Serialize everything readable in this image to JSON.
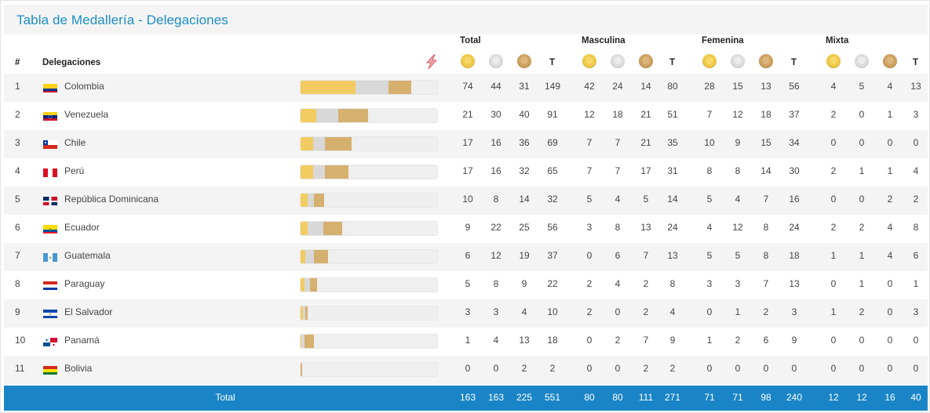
{
  "title": "Tabla de Medallería - Delegaciones",
  "header": {
    "rank": "#",
    "delegations": "Delegaciones",
    "groups": [
      "Total",
      "Masculina",
      "Femenina",
      "Mixta"
    ],
    "total_col": "T"
  },
  "rows": [
    {
      "rank": "1",
      "country": "Colombia",
      "flag": "colombia",
      "total": [
        "74",
        "44",
        "31",
        "149"
      ],
      "men": [
        "42",
        "24",
        "14",
        "80"
      ],
      "women": [
        "28",
        "15",
        "13",
        "56"
      ],
      "mixed": [
        "4",
        "5",
        "4",
        "13"
      ]
    },
    {
      "rank": "2",
      "country": "Venezuela",
      "flag": "venezuela",
      "total": [
        "21",
        "30",
        "40",
        "91"
      ],
      "men": [
        "12",
        "18",
        "21",
        "51"
      ],
      "women": [
        "7",
        "12",
        "18",
        "37"
      ],
      "mixed": [
        "2",
        "0",
        "1",
        "3"
      ]
    },
    {
      "rank": "3",
      "country": "Chile",
      "flag": "chile",
      "total": [
        "17",
        "16",
        "36",
        "69"
      ],
      "men": [
        "7",
        "7",
        "21",
        "35"
      ],
      "women": [
        "10",
        "9",
        "15",
        "34"
      ],
      "mixed": [
        "0",
        "0",
        "0",
        "0"
      ]
    },
    {
      "rank": "4",
      "country": "Perú",
      "flag": "peru",
      "total": [
        "17",
        "16",
        "32",
        "65"
      ],
      "men": [
        "7",
        "7",
        "17",
        "31"
      ],
      "women": [
        "8",
        "8",
        "14",
        "30"
      ],
      "mixed": [
        "2",
        "1",
        "1",
        "4"
      ]
    },
    {
      "rank": "5",
      "country": "República Dominicana",
      "flag": "dominicana",
      "total": [
        "10",
        "8",
        "14",
        "32"
      ],
      "men": [
        "5",
        "4",
        "5",
        "14"
      ],
      "women": [
        "5",
        "4",
        "7",
        "16"
      ],
      "mixed": [
        "0",
        "0",
        "2",
        "2"
      ]
    },
    {
      "rank": "6",
      "country": "Ecuador",
      "flag": "ecuador",
      "total": [
        "9",
        "22",
        "25",
        "56"
      ],
      "men": [
        "3",
        "8",
        "13",
        "24"
      ],
      "women": [
        "4",
        "12",
        "8",
        "24"
      ],
      "mixed": [
        "2",
        "2",
        "4",
        "8"
      ]
    },
    {
      "rank": "7",
      "country": "Guatemala",
      "flag": "guatemala",
      "total": [
        "6",
        "12",
        "19",
        "37"
      ],
      "men": [
        "0",
        "6",
        "7",
        "13"
      ],
      "women": [
        "5",
        "5",
        "8",
        "18"
      ],
      "mixed": [
        "1",
        "1",
        "4",
        "6"
      ]
    },
    {
      "rank": "8",
      "country": "Paraguay",
      "flag": "paraguay",
      "total": [
        "5",
        "8",
        "9",
        "22"
      ],
      "men": [
        "2",
        "4",
        "2",
        "8"
      ],
      "women": [
        "3",
        "3",
        "7",
        "13"
      ],
      "mixed": [
        "0",
        "1",
        "0",
        "1"
      ]
    },
    {
      "rank": "9",
      "country": "El Salvador",
      "flag": "elsalvador",
      "total": [
        "3",
        "3",
        "4",
        "10"
      ],
      "men": [
        "2",
        "0",
        "2",
        "4"
      ],
      "women": [
        "0",
        "1",
        "2",
        "3"
      ],
      "mixed": [
        "1",
        "2",
        "0",
        "3"
      ]
    },
    {
      "rank": "10",
      "country": "Panamá",
      "flag": "panama",
      "total": [
        "1",
        "4",
        "13",
        "18"
      ],
      "men": [
        "0",
        "2",
        "7",
        "9"
      ],
      "women": [
        "1",
        "2",
        "6",
        "9"
      ],
      "mixed": [
        "0",
        "0",
        "0",
        "0"
      ]
    },
    {
      "rank": "11",
      "country": "Bolivia",
      "flag": "bolivia",
      "total": [
        "0",
        "0",
        "2",
        "2"
      ],
      "men": [
        "0",
        "0",
        "2",
        "2"
      ],
      "women": [
        "0",
        "0",
        "0",
        "0"
      ],
      "mixed": [
        "0",
        "0",
        "0",
        "0"
      ]
    }
  ],
  "footer": {
    "label": "Total",
    "total": [
      "163",
      "163",
      "225",
      "551"
    ],
    "men": [
      "80",
      "80",
      "111",
      "271"
    ],
    "women": [
      "71",
      "71",
      "98",
      "240"
    ],
    "mixed": [
      "12",
      "12",
      "16",
      "40"
    ]
  },
  "colors": {
    "title": "#1d8ec9",
    "footer_bg": "#1a85c6",
    "gold": "#f2cc60",
    "silver": "#d8d8d8",
    "bronze": "#d6b06f"
  },
  "icons": {
    "sort": "bolt-logo-icon",
    "medals": [
      "gold-medal-icon",
      "silver-medal-icon",
      "bronze-medal-icon"
    ]
  }
}
